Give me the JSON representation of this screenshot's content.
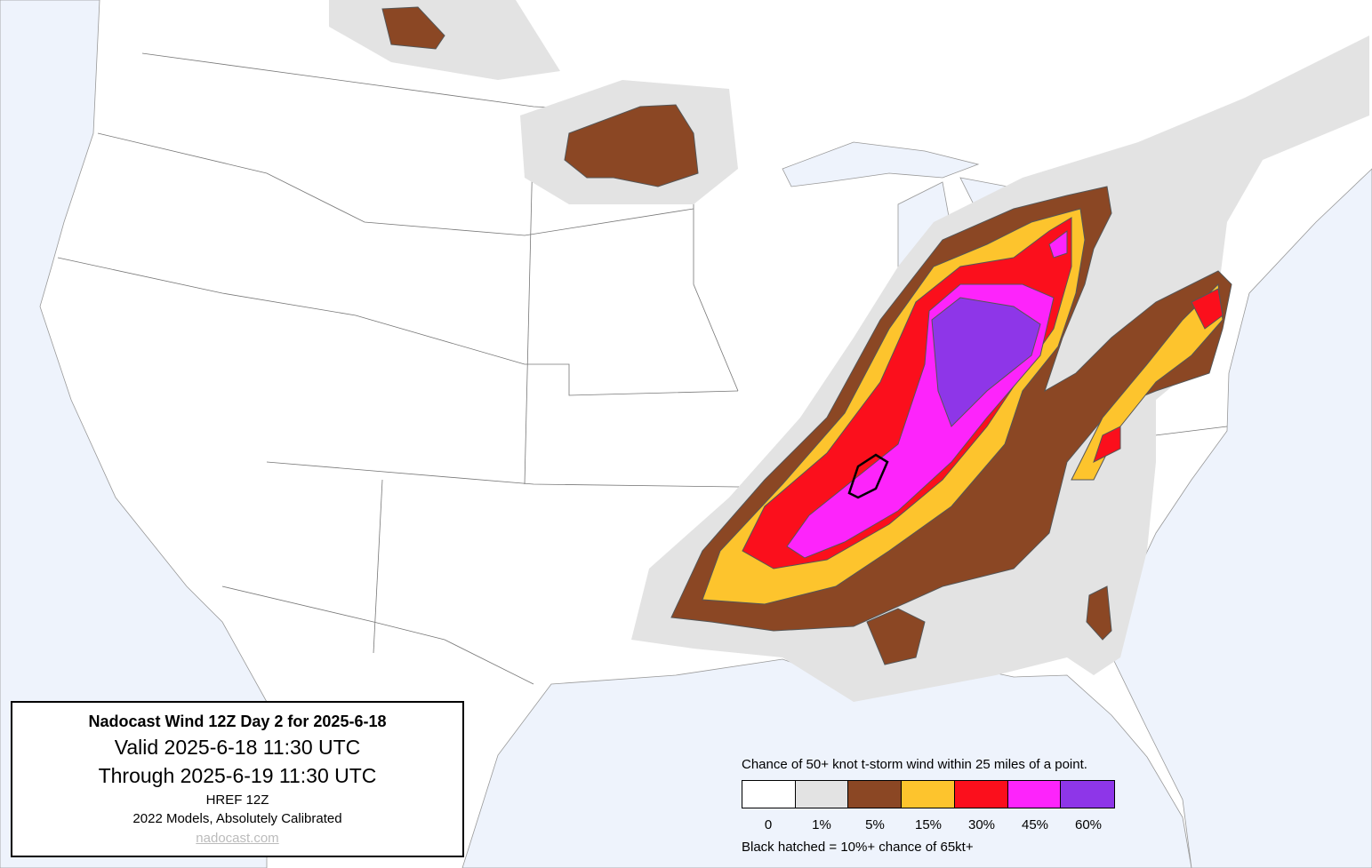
{
  "info_box": {
    "title": "Nadocast Wind 12Z Day 2 for 2025-6-18",
    "valid": "Valid 2025-6-18 11:30 UTC",
    "through": "Through 2025-6-19 11:30 UTC",
    "model": "HREF 12Z",
    "calibration": "2022 Models, Absolutely Calibrated",
    "link": "nadocast.com"
  },
  "legend": {
    "title": "Chance of 50+ knot t-storm wind within 25 miles of a point.",
    "items": [
      {
        "label": "0",
        "color": "#ffffff"
      },
      {
        "label": "1%",
        "color": "#e3e3e3"
      },
      {
        "label": "5%",
        "color": "#8b4724"
      },
      {
        "label": "15%",
        "color": "#fdc42d"
      },
      {
        "label": "30%",
        "color": "#fb0f1c"
      },
      {
        "label": "45%",
        "color": "#fd24fb"
      },
      {
        "label": "60%",
        "color": "#8e36e8"
      }
    ],
    "note": "Black hatched = 10%+ chance of 65kt+"
  }
}
